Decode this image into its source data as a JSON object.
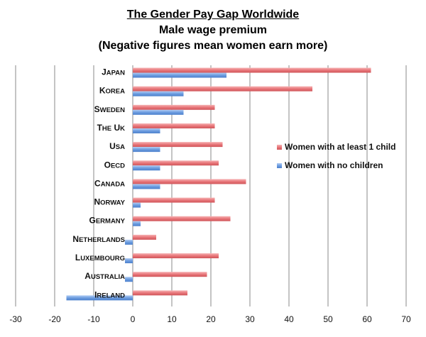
{
  "title": "The Gender Pay Gap Worldwide",
  "subtitle": "Male wage premium",
  "note": "(Negative figures mean women earn more)",
  "chart_data": {
    "type": "bar",
    "orientation": "horizontal",
    "title": "The Gender Pay Gap Worldwide",
    "subtitle": "Male wage premium",
    "note": "(Negative figures mean women earn more)",
    "categories": [
      "Japan",
      "Korea",
      "Sweden",
      "The UK",
      "USA",
      "OECD",
      "Canada",
      "Norway",
      "Germany",
      "Netherlands",
      "Luxembourg",
      "Australia",
      "Ireland"
    ],
    "series": [
      {
        "name": "Women with at least 1 child",
        "color": "#e8767a",
        "values": [
          61,
          46,
          21,
          21,
          23,
          22,
          29,
          21,
          25,
          6,
          22,
          19,
          14
        ]
      },
      {
        "name": "Women with no children",
        "color": "#6d9de0",
        "values": [
          24,
          13,
          13,
          7,
          7,
          7,
          7,
          2,
          2,
          -2,
          -2,
          -2,
          -17
        ]
      }
    ],
    "xlim": [
      -30,
      70
    ],
    "xticks": [
      -30,
      -20,
      -10,
      0,
      10,
      20,
      30,
      40,
      50,
      60,
      70
    ],
    "grid": "vertical",
    "legend_position": "right"
  }
}
